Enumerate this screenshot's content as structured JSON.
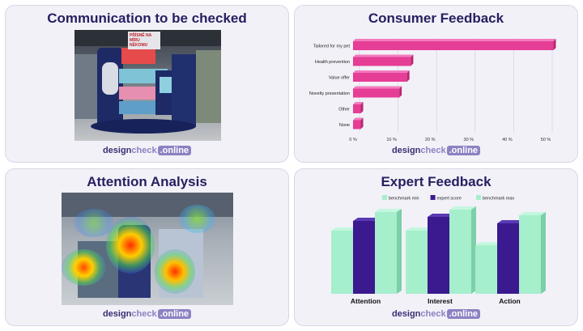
{
  "panels": {
    "communication": {
      "title": "Communication to be checked"
    },
    "consumer": {
      "title": "Consumer Feedback"
    },
    "attention": {
      "title": "Attention Analysis"
    },
    "expert": {
      "title": "Expert Feedback"
    }
  },
  "logo": {
    "part1": "design",
    "part2": "check",
    "part3": ".online"
  },
  "photo": {
    "sign_text": "PŘÍSNĚ NA MÍRU NĚKOMU"
  },
  "chart_data": [
    {
      "type": "bar",
      "orientation": "horizontal",
      "title": "Consumer Feedback",
      "categories": [
        "Tailored for my pet",
        "Health prevention",
        "Value offer",
        "Novelty presentation",
        "Other",
        "None"
      ],
      "values": [
        52,
        15,
        14,
        12,
        2,
        2
      ],
      "xlim": [
        0,
        50
      ],
      "xticks": [
        "0 %",
        "10 %",
        "20 %",
        "30 %",
        "40 %",
        "50 %"
      ],
      "color": "#e63d96",
      "grid": true
    },
    {
      "type": "bar",
      "title": "Expert Feedback",
      "categories": [
        "Attention",
        "Interest",
        "Action"
      ],
      "series": [
        {
          "name": "benchmark min",
          "values": [
            78,
            78,
            60
          ],
          "color": "#a6efcc"
        },
        {
          "name": "expert score",
          "values": [
            90,
            95,
            87
          ],
          "color": "#3a1a8e"
        },
        {
          "name": "benchmark max",
          "values": [
            101,
            104,
            97
          ],
          "color": "#a6efcc"
        }
      ],
      "ylim": [
        0,
        110
      ],
      "legend": "top"
    }
  ]
}
